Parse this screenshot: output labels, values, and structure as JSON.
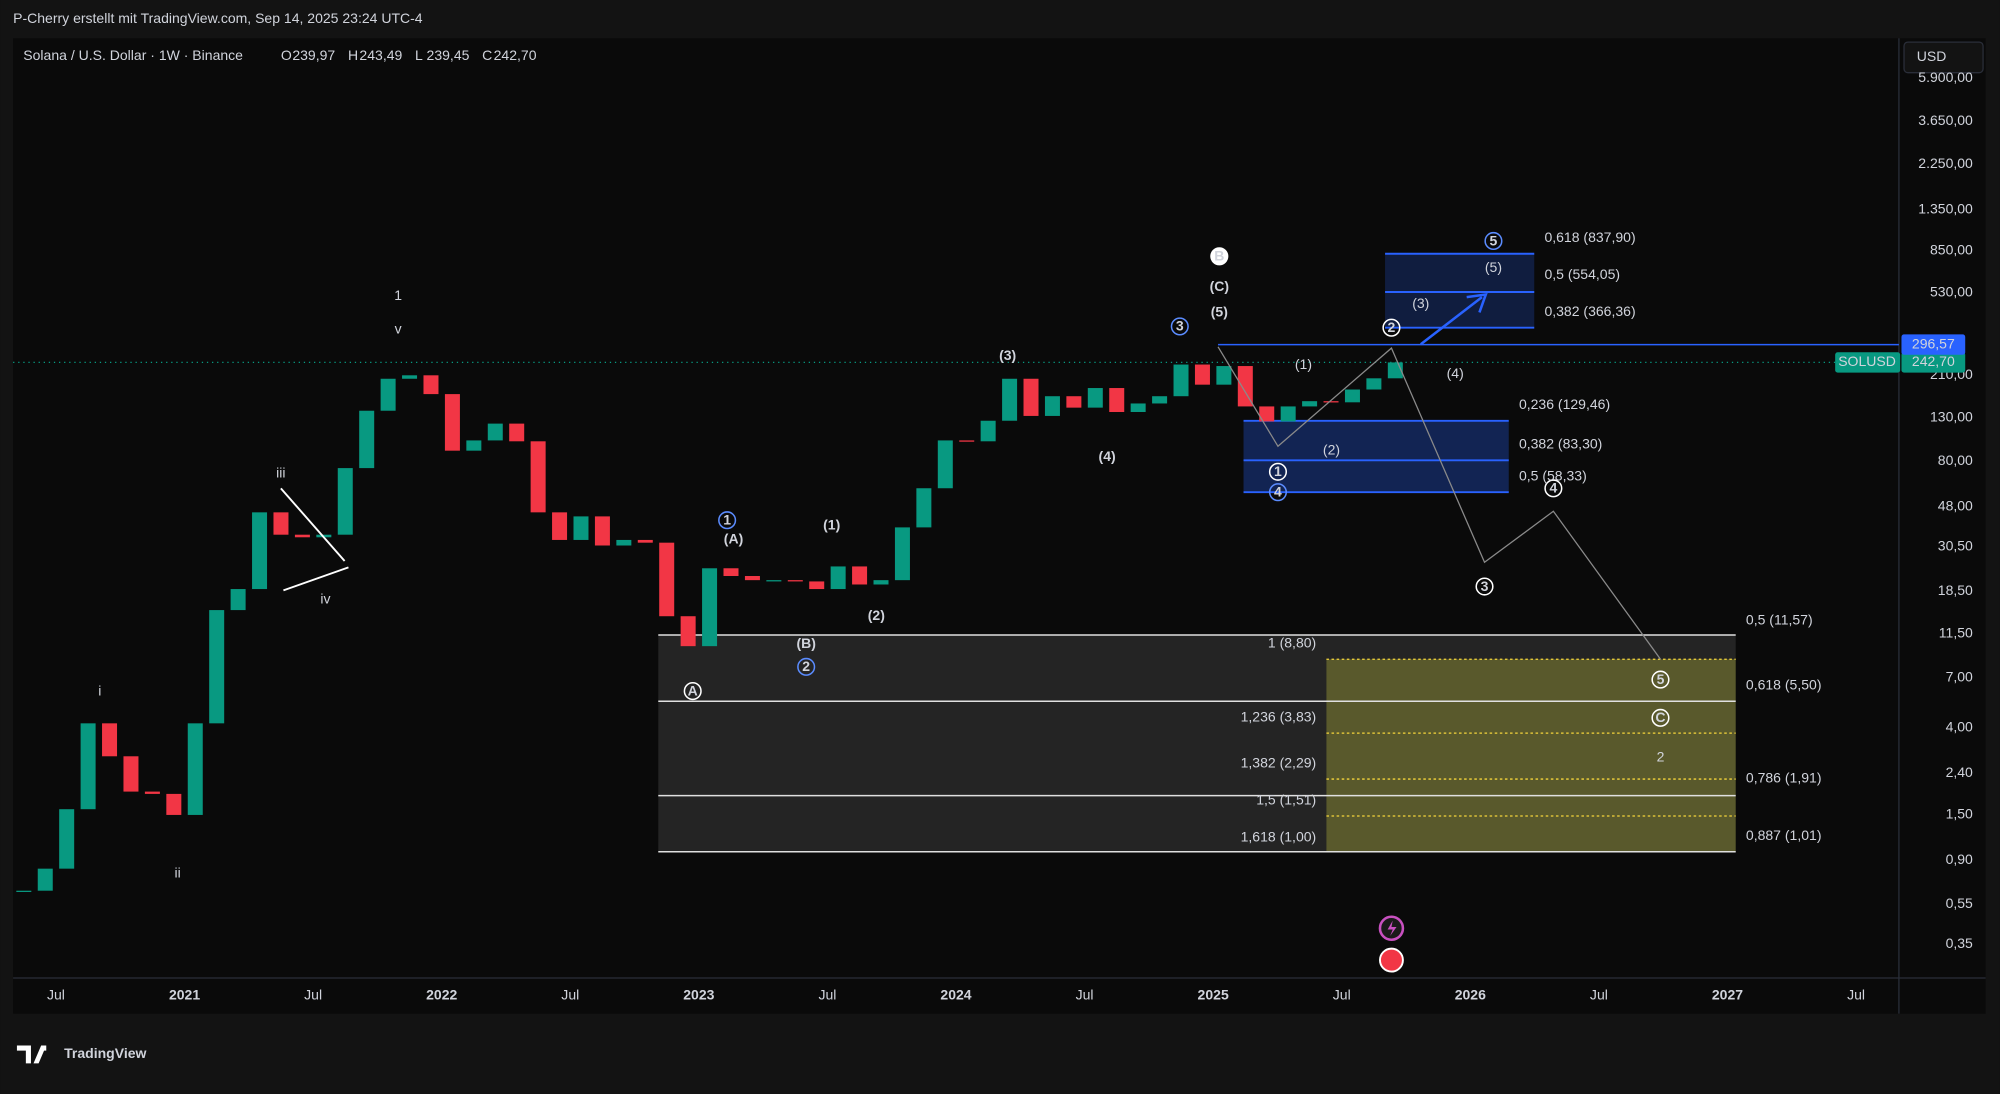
{
  "header": {
    "attribution": "P-Cherry erstellt mit TradingView.com, Sep 14, 2025 23:24 UTC-4"
  },
  "chart_data": {
    "type": "candlestick",
    "title": "Solana / U.S. Dollar · 1W · Binance",
    "ohlc_names": [
      "O",
      "H",
      "L",
      "C"
    ],
    "ohlc": [
      {
        "value": 239.97,
        "label": "239,97"
      },
      {
        "value": 243.49,
        "label": "243,49"
      },
      {
        "value": 239.45,
        "label": "239,45"
      },
      {
        "value": 242.7,
        "label": "242,70"
      }
    ],
    "currency": "USD",
    "log_scale": true,
    "months": [
      "2020-05",
      "2020-06",
      "2020-07",
      "2020-08",
      "2020-09",
      "2020-10",
      "2020-11",
      "2020-12",
      "2021-01",
      "2021-02",
      "2021-03",
      "2021-04",
      "2021-05",
      "2021-06",
      "2021-07",
      "2021-08",
      "2021-09",
      "2021-10",
      "2021-11",
      "2021-12",
      "2022-01",
      "2022-02",
      "2022-03",
      "2022-04",
      "2022-05",
      "2022-06",
      "2022-07",
      "2022-08",
      "2022-09",
      "2022-10",
      "2022-11",
      "2022-12",
      "2023-01",
      "2023-02",
      "2023-03",
      "2023-04",
      "2023-05",
      "2023-06",
      "2023-07",
      "2023-08",
      "2023-09",
      "2023-10",
      "2023-11",
      "2023-12",
      "2024-01",
      "2024-02",
      "2024-03",
      "2024-04",
      "2024-05",
      "2024-06",
      "2024-07",
      "2024-08",
      "2024-09",
      "2024-10",
      "2024-11",
      "2024-12",
      "2025-01",
      "2025-02",
      "2025-03",
      "2025-04",
      "2025-05",
      "2025-06",
      "2025-07",
      "2025-08",
      "2025-09"
    ],
    "closes": [
      0.64,
      0.82,
      1.6,
      4.2,
      2.9,
      1.95,
      1.9,
      1.5,
      4.2,
      15,
      19,
      45,
      35,
      34,
      35,
      74,
      141,
      202,
      210,
      170,
      90,
      101,
      122,
      100,
      45,
      33,
      43,
      31,
      33,
      32,
      14,
      10,
      24,
      22,
      21,
      21,
      20.7,
      19,
      24.5,
      20,
      21,
      38,
      59,
      101,
      100,
      126,
      202,
      133,
      166,
      146,
      182,
      139,
      153,
      166,
      237,
      189,
      233,
      148,
      125,
      148,
      157,
      155,
      179,
      203,
      242.7
    ],
    "up_color": "#089981",
    "down_color": "#f23645",
    "xlim": [
      "2020-05",
      "2027-09"
    ],
    "xticks": [
      {
        "value": "2020-07",
        "label": "Jul"
      },
      {
        "value": "2021-01",
        "label": "2021"
      },
      {
        "value": "2021-07",
        "label": "Jul"
      },
      {
        "value": "2022-01",
        "label": "2022"
      },
      {
        "value": "2022-07",
        "label": "Jul"
      },
      {
        "value": "2023-01",
        "label": "2023"
      },
      {
        "value": "2023-07",
        "label": "Jul"
      },
      {
        "value": "2024-01",
        "label": "2024"
      },
      {
        "value": "2024-07",
        "label": "Jul"
      },
      {
        "value": "2025-01",
        "label": "2025"
      },
      {
        "value": "2025-07",
        "label": "Jul"
      },
      {
        "value": "2026-01",
        "label": "2026"
      },
      {
        "value": "2026-07",
        "label": "Jul"
      },
      {
        "value": "2027-01",
        "label": "2027"
      },
      {
        "value": "2027-07",
        "label": "Jul"
      }
    ],
    "ylim": [
      0.24,
      9280
    ],
    "yticks": [
      {
        "value": 0.35,
        "label": "0,35"
      },
      {
        "value": 0.55,
        "label": "0,55"
      },
      {
        "value": 0.9,
        "label": "0,90"
      },
      {
        "value": 1.5,
        "label": "1,50"
      },
      {
        "value": 2.4,
        "label": "2,40"
      },
      {
        "value": 4,
        "label": "4,00"
      },
      {
        "value": 7,
        "label": "7,00"
      },
      {
        "value": 11.5,
        "label": "11,50"
      },
      {
        "value": 18.5,
        "label": "18,50"
      },
      {
        "value": 30.5,
        "label": "30,50"
      },
      {
        "value": 48,
        "label": "48,00"
      },
      {
        "value": 80,
        "label": "80,00"
      },
      {
        "value": 130,
        "label": "130,00"
      },
      {
        "value": 210,
        "label": "210,00"
      },
      {
        "value": 530,
        "label": "530,00"
      },
      {
        "value": 850,
        "label": "850,00"
      },
      {
        "value": 1350,
        "label": "1.350,00"
      },
      {
        "value": 2250,
        "label": "2.250,00"
      },
      {
        "value": 3650,
        "label": "3.650,00"
      },
      {
        "value": 5900,
        "label": "5.900,00"
      }
    ],
    "price_lines": [
      {
        "name": "SOLUSD",
        "value": 242.7,
        "label": "242,70",
        "color": "#089981"
      },
      {
        "value": 296.57,
        "label": "296,57",
        "color": "#2962ff"
      }
    ],
    "annotations": [
      "1",
      "v",
      "iii",
      "iv",
      "i",
      "ii",
      "(A)",
      "(1)",
      "(B)",
      "(2)",
      "(3)",
      "(4)",
      "(C)",
      "(5)",
      "B",
      "A",
      "1",
      "2",
      "3",
      "4",
      "5",
      "C",
      "2",
      "1",
      "2",
      "3",
      "4",
      "5",
      "(1)",
      "(2)",
      "(3)",
      "(4)",
      "(5)"
    ],
    "fib_labels": [
      "0,618 (837,90)",
      "0,5 (554,05)",
      "0,382 (366,36)",
      "0,236 (129,46)",
      "0,382 (83,30)",
      "0,5 (58,33)",
      "0,5 (11,57)",
      "0,618 (5,50)",
      "0,786 (1,91)",
      "0,887 (1,01)",
      "1 (8,80)",
      "1,236 (3,83)",
      "1,382 (2,29)",
      "1,5 (1,51)",
      "1,618 (1,00)"
    ]
  },
  "footer": {
    "logo": "TradingView"
  }
}
